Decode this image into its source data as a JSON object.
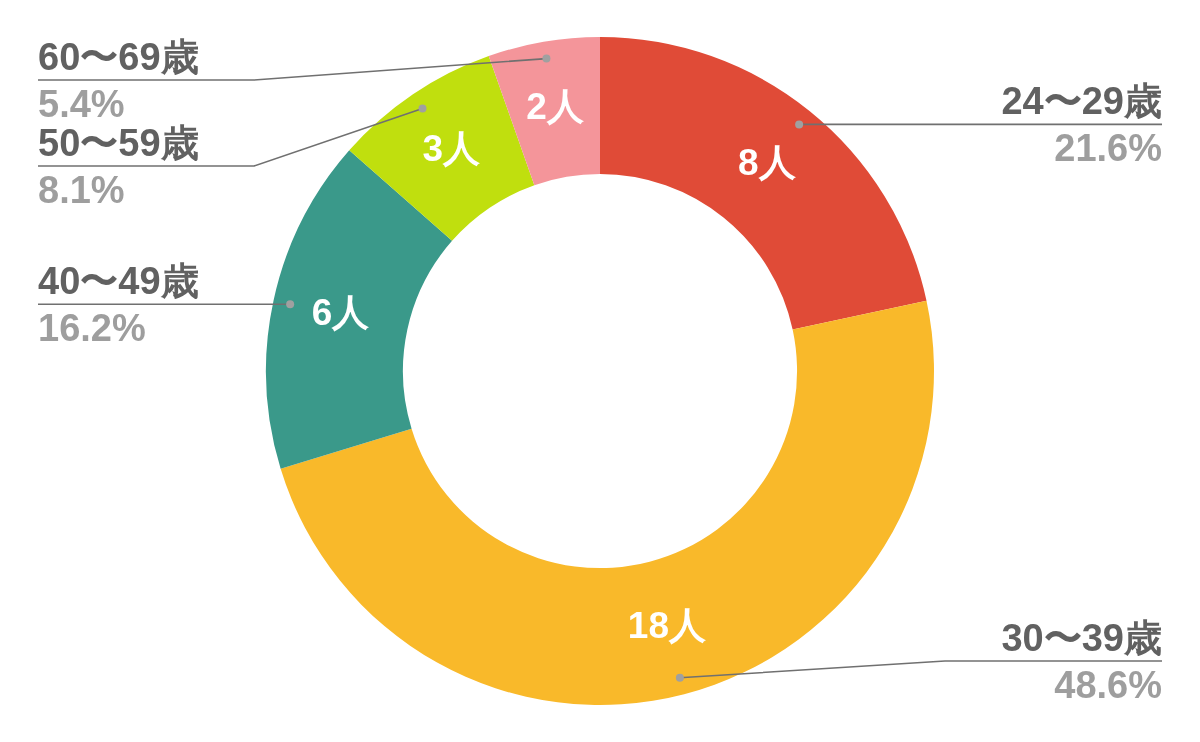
{
  "chart_data": {
    "type": "donut",
    "categories": [
      "24〜29歳",
      "30〜39歳",
      "40〜49歳",
      "50〜59歳",
      "60〜69歳"
    ],
    "values": [
      8,
      18,
      6,
      3,
      2
    ],
    "colors": [
      "#e04b37",
      "#f9b92a",
      "#3a998a",
      "#c0df0e",
      "#f4959a"
    ],
    "value_labels": [
      "8人",
      "18人",
      "6人",
      "3人",
      "2人"
    ],
    "annotations": [
      "21.6%",
      "48.6%",
      "16.2%",
      "8.1%",
      "5.4%"
    ],
    "legend": false
  }
}
